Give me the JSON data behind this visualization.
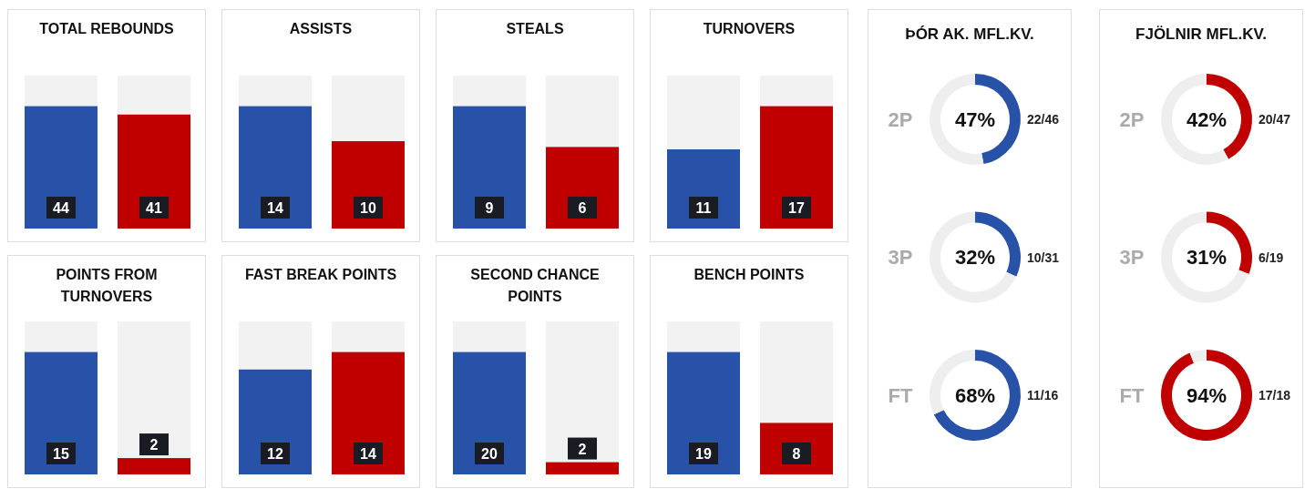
{
  "chart_data": [
    {
      "type": "bar",
      "title": "TOTAL REBOUNDS",
      "categories": [
        null,
        null
      ],
      "values": [
        44,
        41
      ],
      "colors": [
        "#2752a7",
        "#c00000"
      ],
      "data_labels": true
    },
    {
      "type": "bar",
      "title": "ASSISTS",
      "categories": [
        null,
        null
      ],
      "values": [
        14,
        10
      ],
      "colors": [
        "#2752a7",
        "#c00000"
      ],
      "data_labels": true
    },
    {
      "type": "bar",
      "title": "STEALS",
      "categories": [
        null,
        null
      ],
      "values": [
        9,
        6
      ],
      "colors": [
        "#2752a7",
        "#c00000"
      ],
      "data_labels": true
    },
    {
      "type": "bar",
      "title": "TURNOVERS",
      "categories": [
        null,
        null
      ],
      "values": [
        11,
        17
      ],
      "colors": [
        "#2752a7",
        "#c00000"
      ],
      "data_labels": true
    },
    {
      "type": "bar",
      "title": "POINTS FROM TURNOVERS",
      "categories": [
        null,
        null
      ],
      "values": [
        15,
        2
      ],
      "colors": [
        "#2752a7",
        "#c00000"
      ],
      "data_labels": true
    },
    {
      "type": "bar",
      "title": "FAST BREAK POINTS",
      "categories": [
        null,
        null
      ],
      "values": [
        12,
        14
      ],
      "colors": [
        "#2752a7",
        "#c00000"
      ],
      "data_labels": true
    },
    {
      "type": "bar",
      "title": "SECOND CHANCE POINTS",
      "categories": [
        null,
        null
      ],
      "values": [
        20,
        2
      ],
      "colors": [
        "#2752a7",
        "#c00000"
      ],
      "data_labels": true
    },
    {
      "type": "bar",
      "title": "BENCH POINTS",
      "categories": [
        null,
        null
      ],
      "values": [
        19,
        8
      ],
      "colors": [
        "#2752a7",
        "#c00000"
      ],
      "data_labels": true
    },
    {
      "type": "other",
      "title": "ÞÓR AK. MFL.KV."
    },
    {
      "type": "donut",
      "title": "2P",
      "categories": [
        null,
        null
      ],
      "values": [
        47,
        53
      ],
      "colors": [
        "#2752a7",
        "#eeeeee"
      ],
      "annotations": [
        "47%",
        "22/46"
      ]
    },
    {
      "type": "donut",
      "title": "3P",
      "categories": [
        null,
        null
      ],
      "values": [
        32,
        68
      ],
      "colors": [
        "#2752a7",
        "#eeeeee"
      ],
      "annotations": [
        "32%",
        "10/31"
      ]
    },
    {
      "type": "donut",
      "title": "FT",
      "categories": [
        null,
        null
      ],
      "values": [
        68,
        32
      ],
      "colors": [
        "#2752a7",
        "#eeeeee"
      ],
      "annotations": [
        "68%",
        "11/16"
      ]
    },
    {
      "type": "other",
      "title": "FJÖLNIR MFL.KV."
    },
    {
      "type": "donut",
      "title": "2P",
      "categories": [
        null,
        null
      ],
      "values": [
        42,
        58
      ],
      "colors": [
        "#c00000",
        "#eeeeee"
      ],
      "annotations": [
        "42%",
        "20/47"
      ]
    },
    {
      "type": "donut",
      "title": "3P",
      "categories": [
        null,
        null
      ],
      "values": [
        31,
        69
      ],
      "colors": [
        "#c00000",
        "#eeeeee"
      ],
      "annotations": [
        "31%",
        "6/19"
      ]
    },
    {
      "type": "donut",
      "title": "FT",
      "categories": [
        null,
        null
      ],
      "values": [
        94,
        6
      ],
      "colors": [
        "#c00000",
        "#eeeeee"
      ],
      "annotations": [
        "94%",
        "17/18"
      ]
    }
  ]
}
